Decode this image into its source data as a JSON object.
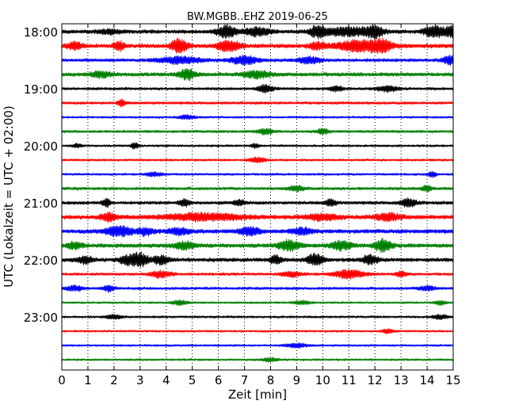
{
  "chart_data": {
    "type": "line",
    "title": "BW.MGBB..EHZ 2019-06-25",
    "xlabel": "Zeit  [min]",
    "ylabel": "UTC (Lokalzeit = UTC + 02:00)",
    "xlim": [
      0,
      15
    ],
    "x_ticks": [
      "0",
      "1",
      "2",
      "3",
      "4",
      "5",
      "6",
      "7",
      "8",
      "9",
      "10",
      "11",
      "12",
      "13",
      "14",
      "15"
    ],
    "y_ticks": [
      "18:00",
      "19:00",
      "20:00",
      "21:00",
      "22:00",
      "23:00"
    ],
    "grid_x": true,
    "trace_interval_min": 15,
    "trace_colors": [
      "#000000",
      "#ff0000",
      "#0000ff",
      "#008000"
    ],
    "series": [
      {
        "start": "18:00",
        "color": "#000000",
        "noise": 2.6,
        "bursts": [
          [
            1.8,
            0.4,
            2.5
          ],
          [
            6.3,
            0.35,
            7
          ],
          [
            7.5,
            0.5,
            5
          ],
          [
            9.8,
            0.3,
            6
          ],
          [
            11,
            1.0,
            5
          ],
          [
            12,
            0.3,
            6
          ],
          [
            14.3,
            0.4,
            7
          ],
          [
            15,
            0.3,
            6
          ]
        ]
      },
      {
        "start": "18:15",
        "color": "#ff0000",
        "noise": 2.8,
        "bursts": [
          [
            0.5,
            0.3,
            4
          ],
          [
            2.2,
            0.2,
            5
          ],
          [
            4.5,
            0.3,
            8
          ],
          [
            6.4,
            0.4,
            7
          ],
          [
            9.8,
            0.3,
            4
          ],
          [
            11.5,
            0.9,
            7
          ],
          [
            12.3,
            0.3,
            5
          ]
        ]
      },
      {
        "start": "18:30",
        "color": "#0000ff",
        "noise": 2.2,
        "bursts": [
          [
            4.5,
            0.8,
            4
          ],
          [
            7,
            0.5,
            5
          ],
          [
            9.5,
            0.4,
            4
          ],
          [
            14.9,
            0.3,
            5
          ]
        ]
      },
      {
        "start": "18:45",
        "color": "#008000",
        "noise": 2.6,
        "bursts": [
          [
            1.5,
            0.4,
            3.5
          ],
          [
            4.8,
            0.3,
            6.5
          ],
          [
            7.5,
            0.5,
            4
          ]
        ]
      },
      {
        "start": "19:00",
        "color": "#000000",
        "noise": 1.8,
        "bursts": [
          [
            7.8,
            0.3,
            4.5
          ],
          [
            10.5,
            0.3,
            3
          ],
          [
            12.5,
            0.4,
            3.5
          ]
        ]
      },
      {
        "start": "19:15",
        "color": "#ff0000",
        "noise": 1.8,
        "bursts": [
          [
            2.3,
            0.15,
            4
          ]
        ]
      },
      {
        "start": "19:30",
        "color": "#0000ff",
        "noise": 1.4,
        "bursts": [
          [
            4.8,
            0.3,
            2.5
          ]
        ]
      },
      {
        "start": "19:45",
        "color": "#008000",
        "noise": 1.8,
        "bursts": [
          [
            7.8,
            0.3,
            3
          ],
          [
            10,
            0.2,
            3.5
          ]
        ]
      },
      {
        "start": "20:00",
        "color": "#000000",
        "noise": 1.5,
        "bursts": [
          [
            0.6,
            0.15,
            2.5
          ],
          [
            2.8,
            0.15,
            3.5
          ],
          [
            7.4,
            0.15,
            2.5
          ]
        ]
      },
      {
        "start": "20:15",
        "color": "#ff0000",
        "noise": 1.5,
        "bursts": [
          [
            7.5,
            0.3,
            3
          ]
        ]
      },
      {
        "start": "20:30",
        "color": "#0000ff",
        "noise": 1.5,
        "bursts": [
          [
            3.5,
            0.3,
            2.5
          ],
          [
            14.2,
            0.15,
            3.5
          ]
        ]
      },
      {
        "start": "20:45",
        "color": "#008000",
        "noise": 2.0,
        "bursts": [
          [
            9,
            0.3,
            3
          ],
          [
            14,
            0.2,
            3.5
          ]
        ]
      },
      {
        "start": "21:00",
        "color": "#000000",
        "noise": 2.2,
        "bursts": [
          [
            1.7,
            0.15,
            5
          ],
          [
            4.7,
            0.2,
            4.5
          ],
          [
            6.8,
            0.2,
            3.5
          ],
          [
            10.3,
            0.2,
            4
          ],
          [
            13.3,
            0.3,
            4.5
          ]
        ]
      },
      {
        "start": "21:15",
        "color": "#ff0000",
        "noise": 2.8,
        "bursts": [
          [
            1.8,
            0.3,
            4.5
          ],
          [
            5.5,
            1.5,
            4
          ],
          [
            10,
            0.6,
            3.5
          ],
          [
            12.5,
            0.5,
            4
          ]
        ]
      },
      {
        "start": "21:30",
        "color": "#0000ff",
        "noise": 2.8,
        "bursts": [
          [
            2.2,
            0.5,
            6
          ],
          [
            3.2,
            0.3,
            4
          ],
          [
            4.5,
            0.4,
            4
          ],
          [
            7.2,
            0.4,
            4.5
          ],
          [
            9.2,
            0.4,
            4
          ]
        ]
      },
      {
        "start": "21:45",
        "color": "#008000",
        "noise": 2.8,
        "bursts": [
          [
            0.5,
            0.3,
            4
          ],
          [
            4.7,
            0.4,
            4
          ],
          [
            8.7,
            0.4,
            6
          ],
          [
            10.7,
            0.4,
            5
          ],
          [
            12.3,
            0.3,
            7.5
          ]
        ]
      },
      {
        "start": "22:00",
        "color": "#000000",
        "noise": 2.6,
        "bursts": [
          [
            0.9,
            0.3,
            4
          ],
          [
            2.5,
            0.3,
            5
          ],
          [
            3,
            0.3,
            8
          ],
          [
            3.8,
            0.3,
            5
          ],
          [
            8.2,
            0.2,
            5
          ],
          [
            9.7,
            0.3,
            7
          ],
          [
            11.8,
            0.3,
            5
          ]
        ]
      },
      {
        "start": "22:15",
        "color": "#ff0000",
        "noise": 1.8,
        "bursts": [
          [
            3.8,
            0.4,
            4
          ],
          [
            8.8,
            0.4,
            3
          ],
          [
            11,
            0.6,
            5
          ],
          [
            13,
            0.2,
            3.5
          ]
        ]
      },
      {
        "start": "22:30",
        "color": "#0000ff",
        "noise": 1.8,
        "bursts": [
          [
            0.5,
            0.3,
            3
          ],
          [
            1.8,
            0.2,
            3.5
          ],
          [
            14,
            0.3,
            3
          ]
        ]
      },
      {
        "start": "22:45",
        "color": "#008000",
        "noise": 1.4,
        "bursts": [
          [
            4.5,
            0.3,
            2.5
          ],
          [
            9.2,
            0.3,
            2.5
          ],
          [
            14.5,
            0.2,
            2.5
          ]
        ]
      },
      {
        "start": "23:00",
        "color": "#000000",
        "noise": 1.5,
        "bursts": [
          [
            2,
            0.3,
            2.5
          ],
          [
            14.5,
            0.3,
            2.5
          ]
        ]
      },
      {
        "start": "23:15",
        "color": "#ff0000",
        "noise": 1.4,
        "bursts": [
          [
            12.5,
            0.2,
            2.5
          ]
        ]
      },
      {
        "start": "23:30",
        "color": "#0000ff",
        "noise": 1.4,
        "bursts": [
          [
            9,
            0.4,
            2.5
          ]
        ]
      },
      {
        "start": "23:45",
        "color": "#008000",
        "noise": 1.4,
        "bursts": [
          [
            8,
            0.3,
            2.2
          ]
        ]
      }
    ]
  }
}
